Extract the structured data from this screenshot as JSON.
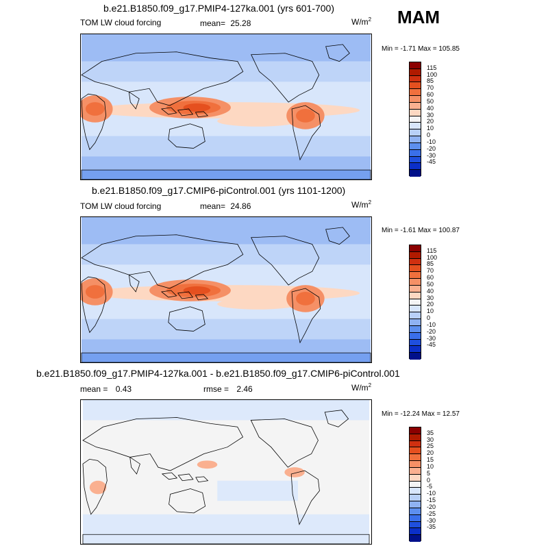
{
  "season": "MAM",
  "chart_data": [
    {
      "type": "heatmap",
      "title": "b.e21.B1850.f09_g17.PMIP4-127ka.001 (yrs 601-700)",
      "variable": "TOM LW cloud forcing",
      "mean_label": "mean=",
      "mean": "25.28",
      "units": "W/m",
      "units_sup": "2",
      "minmax": "Min =  -1.71 Max = 105.85",
      "min": -1.71,
      "max": 105.85,
      "levels": [
        "115",
        "100",
        "85",
        "70",
        "60",
        "50",
        "40",
        "30",
        "20",
        "10",
        "0",
        "-10",
        "-20",
        "-30",
        "-45"
      ],
      "colors": [
        "#8b0000",
        "#b01a00",
        "#d03010",
        "#e5501f",
        "#f0703d",
        "#f59066",
        "#fab090",
        "#fdd8c2",
        "#f4f4f4",
        "#d8e6fb",
        "#b8d0f7",
        "#8fb2f2",
        "#5d8fee",
        "#3a6fea",
        "#1f4fde",
        "#0b2fc8",
        "#00108a"
      ],
      "regions": [
        {
          "name": "background",
          "value": 25,
          "color_index": 9
        },
        {
          "name": "africa-convection",
          "value": 60,
          "color_index": 5
        },
        {
          "name": "maritime-continent",
          "value": 70,
          "color_index": 4
        },
        {
          "name": "amazon-convection",
          "value": 60,
          "color_index": 5
        },
        {
          "name": "itcz-pacific",
          "value": 40,
          "color_index": 7
        },
        {
          "name": "southern-ocean",
          "value": 15,
          "color_index": 10
        }
      ]
    },
    {
      "type": "heatmap",
      "title": "b.e21.B1850.f09_g17.CMIP6-piControl.001 (yrs 1101-1200)",
      "variable": "TOM LW cloud forcing",
      "mean_label": "mean=",
      "mean": "24.86",
      "units": "W/m",
      "units_sup": "2",
      "minmax": "Min =  -1.61 Max = 100.87",
      "min": -1.61,
      "max": 100.87,
      "levels": [
        "115",
        "100",
        "85",
        "70",
        "60",
        "50",
        "40",
        "30",
        "20",
        "10",
        "0",
        "-10",
        "-20",
        "-30",
        "-45"
      ],
      "colors": [
        "#8b0000",
        "#b01a00",
        "#d03010",
        "#e5501f",
        "#f0703d",
        "#f59066",
        "#fab090",
        "#fdd8c2",
        "#f4f4f4",
        "#d8e6fb",
        "#b8d0f7",
        "#8fb2f2",
        "#5d8fee",
        "#3a6fea",
        "#1f4fde",
        "#0b2fc8",
        "#00108a"
      ],
      "regions": [
        {
          "name": "background",
          "value": 25,
          "color_index": 9
        },
        {
          "name": "africa-convection",
          "value": 55,
          "color_index": 5
        },
        {
          "name": "maritime-continent",
          "value": 65,
          "color_index": 4
        },
        {
          "name": "amazon-convection",
          "value": 55,
          "color_index": 5
        },
        {
          "name": "itcz-pacific",
          "value": 40,
          "color_index": 7
        },
        {
          "name": "southern-ocean",
          "value": 15,
          "color_index": 10
        }
      ]
    },
    {
      "type": "heatmap",
      "title": "b.e21.B1850.f09_g17.PMIP4-127ka.001 - b.e21.B1850.f09_g17.CMIP6-piControl.001",
      "mean_label": "mean =",
      "mean": "0.43",
      "rmse_label": "rmse =",
      "rmse": "2.46",
      "units": "W/m",
      "units_sup": "2",
      "minmax": "Min = -12.24 Max =  12.57",
      "min": -12.24,
      "max": 12.57,
      "levels": [
        "35",
        "30",
        "25",
        "20",
        "15",
        "10",
        "5",
        "0",
        "-5",
        "-10",
        "-15",
        "-20",
        "-25",
        "-30",
        "-35"
      ],
      "colors": [
        "#8b0000",
        "#b01a00",
        "#d03010",
        "#e5501f",
        "#f0703d",
        "#f59066",
        "#fab090",
        "#fdd8c2",
        "#f4f4f4",
        "#d8e6fb",
        "#b8d0f7",
        "#8fb2f2",
        "#5d8fee",
        "#3a6fea",
        "#1f4fde",
        "#0b2fc8",
        "#00108a"
      ],
      "regions": [
        {
          "name": "background",
          "value": 2,
          "color_index": 8
        },
        {
          "name": "negative-areas",
          "value": -3,
          "color_index": 9
        }
      ]
    }
  ]
}
